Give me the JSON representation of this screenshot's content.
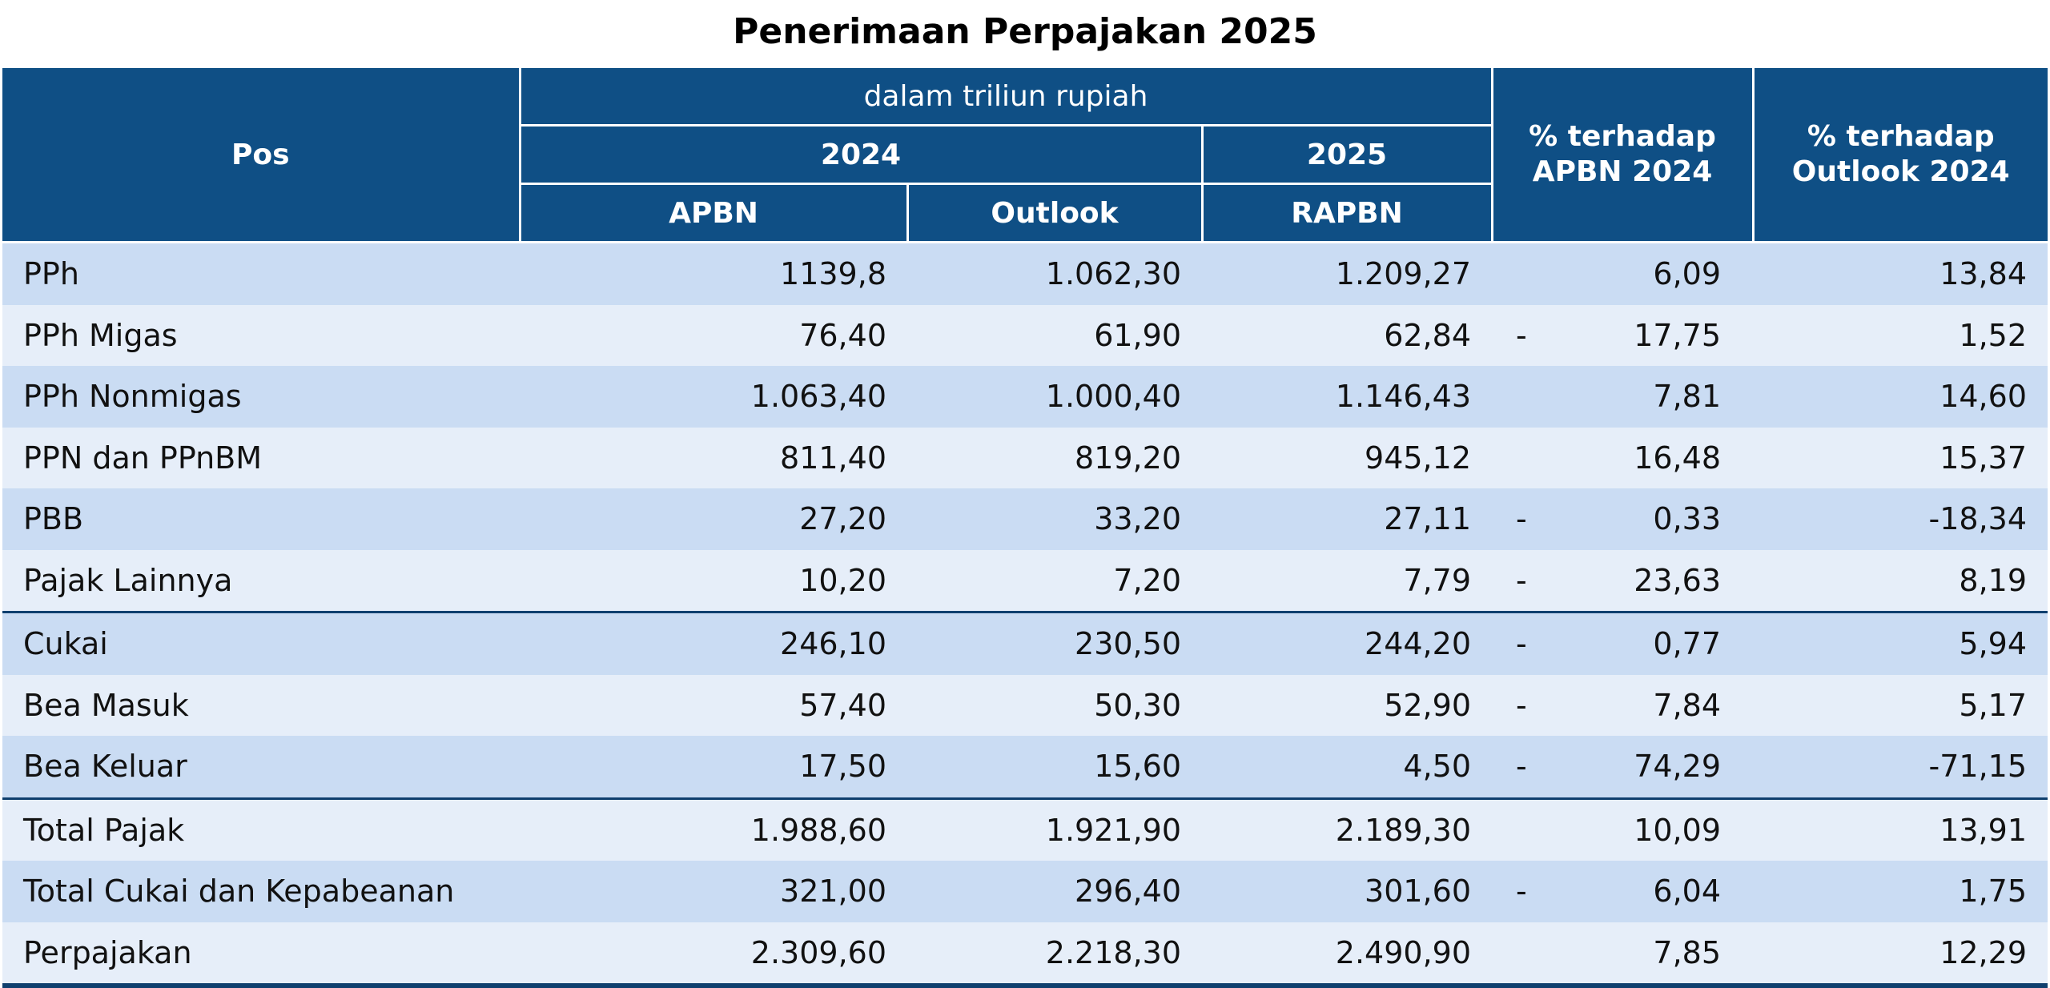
{
  "title": "Penerimaan Perpajakan 2025",
  "colors": {
    "header_bg": "#0f4f85",
    "row_odd": "#cadcf3",
    "row_even": "#e6eef9",
    "separator": "#0f3f6e"
  },
  "header": {
    "pos": "Pos",
    "unit": "dalam triliun rupiah",
    "year_2024": "2024",
    "year_2025": "2025",
    "apbn": "APBN",
    "outlook": "Outlook",
    "rapbn": "RAPBN",
    "pct_apbn_line1": "% terhadap",
    "pct_apbn_line2": "APBN 2024",
    "pct_outlook_line1": "% terhadap",
    "pct_outlook_line2": "Outlook 2024"
  },
  "rows": [
    {
      "pos": "PPh",
      "apbn": "1139,8",
      "outlook": "1.062,30",
      "rapbn": "1.209,27",
      "neg": "",
      "pct_apbn": "6,09",
      "pct_outlook": "13,84"
    },
    {
      "pos": "PPh Migas",
      "apbn": "76,40",
      "outlook": "61,90",
      "rapbn": "62,84",
      "neg": "-",
      "pct_apbn": "17,75",
      "pct_outlook": "1,52"
    },
    {
      "pos": "PPh Nonmigas",
      "apbn": "1.063,40",
      "outlook": "1.000,40",
      "rapbn": "1.146,43",
      "neg": "",
      "pct_apbn": "7,81",
      "pct_outlook": "14,60"
    },
    {
      "pos": "PPN dan PPnBM",
      "apbn": "811,40",
      "outlook": "819,20",
      "rapbn": "945,12",
      "neg": "",
      "pct_apbn": "16,48",
      "pct_outlook": "15,37"
    },
    {
      "pos": "PBB",
      "apbn": "27,20",
      "outlook": "33,20",
      "rapbn": "27,11",
      "neg": "-",
      "pct_apbn": "0,33",
      "pct_outlook": "-18,34"
    },
    {
      "pos": "Pajak Lainnya",
      "apbn": "10,20",
      "outlook": "7,20",
      "rapbn": "7,79",
      "neg": "-",
      "pct_apbn": "23,63",
      "pct_outlook": "8,19"
    },
    {
      "pos": "Cukai",
      "apbn": "246,10",
      "outlook": "230,50",
      "rapbn": "244,20",
      "neg": "-",
      "pct_apbn": "0,77",
      "pct_outlook": "5,94"
    },
    {
      "pos": "Bea Masuk",
      "apbn": "57,40",
      "outlook": "50,30",
      "rapbn": "52,90",
      "neg": "-",
      "pct_apbn": "7,84",
      "pct_outlook": "5,17"
    },
    {
      "pos": "Bea Keluar",
      "apbn": "17,50",
      "outlook": "15,60",
      "rapbn": "4,50",
      "neg": "-",
      "pct_apbn": "74,29",
      "pct_outlook": "-71,15"
    },
    {
      "pos": "Total Pajak",
      "apbn": "1.988,60",
      "outlook": "1.921,90",
      "rapbn": "2.189,30",
      "neg": "",
      "pct_apbn": "10,09",
      "pct_outlook": "13,91"
    },
    {
      "pos": "Total Cukai dan Kepabeanan",
      "apbn": "321,00",
      "outlook": "296,40",
      "rapbn": "301,60",
      "neg": "-",
      "pct_apbn": "6,04",
      "pct_outlook": "1,75"
    },
    {
      "pos": "Perpajakan",
      "apbn": "2.309,60",
      "outlook": "2.218,30",
      "rapbn": "2.490,90",
      "neg": "",
      "pct_apbn": "7,85",
      "pct_outlook": "12,29"
    }
  ]
}
